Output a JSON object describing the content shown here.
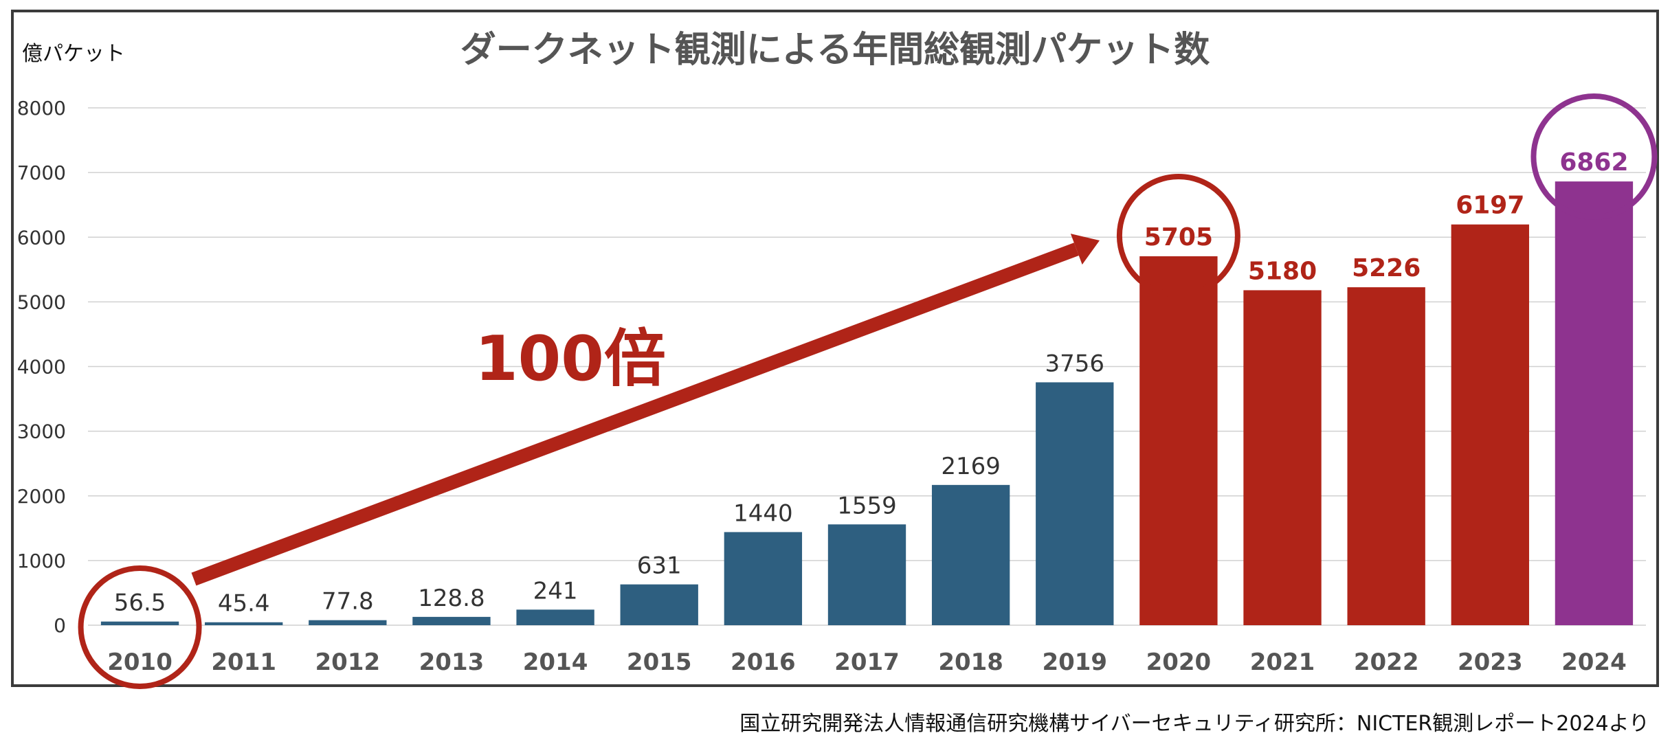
{
  "chart_data": {
    "type": "bar",
    "title": "ダークネット観測による年間総観測パケット数",
    "ylabel": "億パケット",
    "xlabel": "",
    "ylim": [
      0,
      8000
    ],
    "yticks": [
      "0",
      "1000",
      "2000",
      "3000",
      "4000",
      "5000",
      "6000",
      "7000",
      "8000"
    ],
    "grid": true,
    "categories": [
      "2010",
      "2011",
      "2012",
      "2013",
      "2014",
      "2015",
      "2016",
      "2017",
      "2018",
      "2019",
      "2020",
      "2021",
      "2022",
      "2023",
      "2024"
    ],
    "values": [
      56.5,
      45.4,
      77.8,
      128.8,
      241,
      631,
      1440,
      1559,
      2169,
      3756,
      5705,
      5180,
      5226,
      6197,
      6862
    ],
    "value_labels": [
      "56.5",
      "45.4",
      "77.8",
      "128.8",
      "241",
      "631",
      "1440",
      "1559",
      "2169",
      "3756",
      "5705",
      "5180",
      "5226",
      "6197",
      "6862"
    ],
    "colors": {
      "blue": "#2e5f80",
      "red": "#b02418",
      "purple": "#8e338f",
      "grid": "#d0d0d0",
      "title": "#555555"
    },
    "highlighted_categories": [
      "2010",
      "2020",
      "2024"
    ],
    "annotation": {
      "text": "100倍",
      "from": "2010",
      "to": "2020",
      "color": "#b02418"
    }
  },
  "source_note": "国立研究開発法人情報通信研究機構サイバーセキュリティ研究所：NICTER観測レポート2024より"
}
